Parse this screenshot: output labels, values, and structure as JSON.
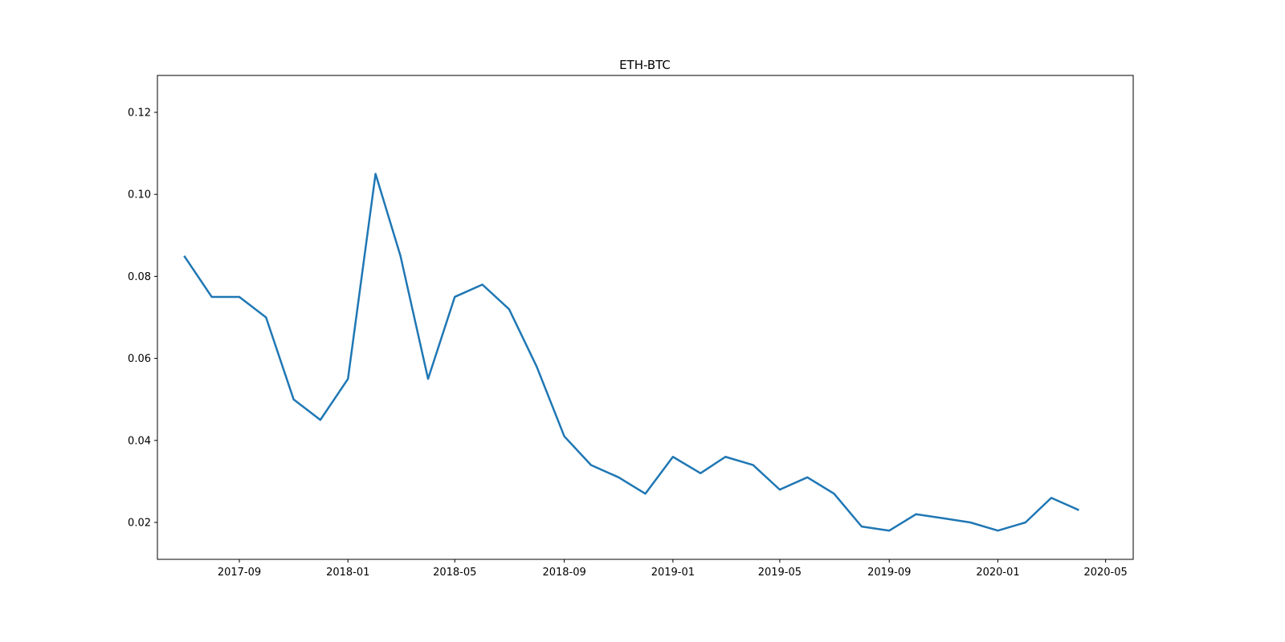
{
  "chart_data": {
    "type": "line",
    "title": "ETH-BTC",
    "x": [
      "2017-07",
      "2017-08",
      "2017-09",
      "2017-10",
      "2017-11",
      "2017-12",
      "2018-01",
      "2018-02",
      "2018-03",
      "2018-04",
      "2018-05",
      "2018-06",
      "2018-07",
      "2018-08",
      "2018-09",
      "2018-10",
      "2018-11",
      "2018-12",
      "2019-01",
      "2019-02",
      "2019-03",
      "2019-04",
      "2019-05",
      "2019-06",
      "2019-07",
      "2019-08",
      "2019-09",
      "2019-10",
      "2019-11",
      "2019-12",
      "2020-01",
      "2020-02",
      "2020-03",
      "2020-04"
    ],
    "series": [
      {
        "name": "ETH-BTC",
        "color": "#1f77b4",
        "values": [
          0.085,
          0.075,
          0.075,
          0.07,
          0.05,
          0.045,
          0.055,
          0.105,
          0.085,
          0.055,
          0.075,
          0.078,
          0.072,
          0.058,
          0.041,
          0.034,
          0.031,
          0.027,
          0.036,
          0.032,
          0.036,
          0.034,
          0.028,
          0.031,
          0.027,
          0.019,
          0.018,
          0.022,
          0.021,
          0.02,
          0.018,
          0.02,
          0.026,
          0.023
        ]
      }
    ],
    "xlim": [
      "2017-06",
      "2020-06"
    ],
    "xticks": [
      "2017-09",
      "2018-01",
      "2018-05",
      "2018-09",
      "2019-01",
      "2019-05",
      "2019-09",
      "2020-01",
      "2020-05"
    ],
    "ylim": [
      0.011,
      0.129
    ],
    "yticks": [
      0.02,
      0.04,
      0.06,
      0.08,
      {
        "value": 0.1,
        "label": "0.10"
      },
      0.12
    ],
    "grid": false
  }
}
